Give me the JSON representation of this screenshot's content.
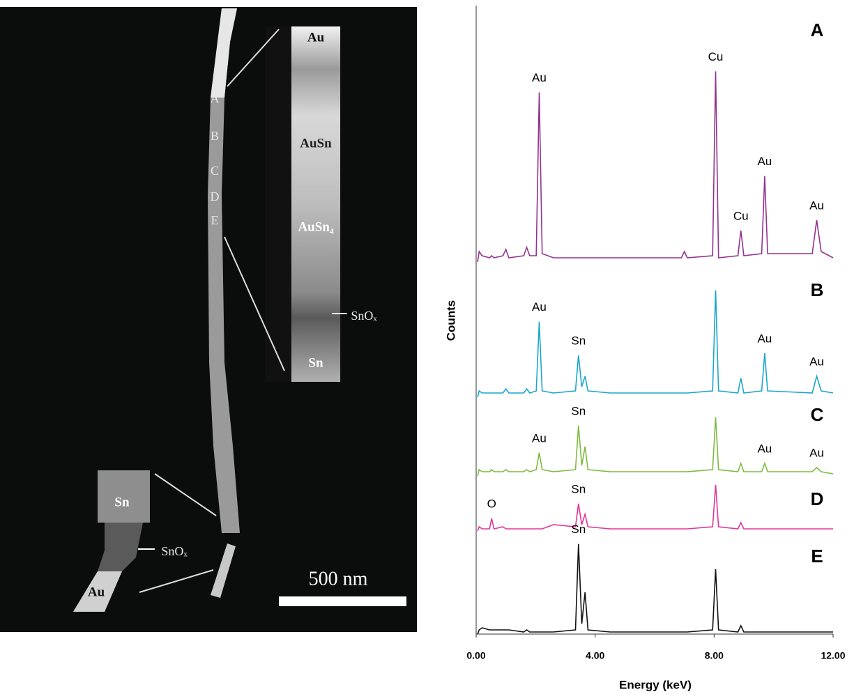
{
  "image": {
    "labels": [
      "A",
      "B",
      "C",
      "D",
      "E",
      "Au",
      "AuSn",
      "AuSn₄",
      "SnOₓ",
      "Sn",
      "Sn",
      "SnOₓ",
      "Au",
      "500 nm"
    ]
  },
  "chart_data": {
    "type": "line",
    "x_label": "Energy (keV)",
    "y_label": "Counts",
    "xlim": [
      0,
      12
    ],
    "xticks": [
      {
        "value": 0,
        "label": "0.00"
      },
      {
        "value": 4,
        "label": "4.00"
      },
      {
        "value": 8,
        "label": "8.00"
      },
      {
        "value": 12,
        "label": "12.00"
      }
    ],
    "ylim": [
      0,
      300
    ],
    "x": [
      0.05,
      0.1,
      0.2,
      0.45,
      0.52,
      0.6,
      0.9,
      1.0,
      1.1,
      1.6,
      1.7,
      1.8,
      2.02,
      2.12,
      2.22,
      2.6,
      3.34,
      3.44,
      3.55,
      3.66,
      3.76,
      4.5,
      6.9,
      7.0,
      7.1,
      7.95,
      8.05,
      8.15,
      8.8,
      8.9,
      9.0,
      9.6,
      9.7,
      9.8,
      11.3,
      11.45,
      11.6,
      12.0
    ],
    "series": [
      {
        "name": "A",
        "color": "#93338f",
        "values": [
          0,
          5,
          3,
          2,
          3,
          2,
          3,
          6,
          2,
          3,
          7,
          3,
          3,
          81,
          4,
          2,
          2,
          2,
          2,
          2,
          2,
          2,
          2,
          5,
          2,
          3,
          91,
          2,
          3,
          15,
          3,
          4,
          41,
          4,
          4,
          20,
          5,
          2
        ],
        "peaks": [
          {
            "label": "Au",
            "x": 2.12
          },
          {
            "label": "Cu",
            "x": 8.05
          },
          {
            "label": "Cu",
            "x": 8.9
          },
          {
            "label": "Au",
            "x": 9.7
          },
          {
            "label": "Au",
            "x": 11.45
          }
        ]
      },
      {
        "name": "B",
        "color": "#1aa6cf",
        "values": [
          0,
          3,
          2,
          2,
          2,
          2,
          2,
          4,
          2,
          2,
          4,
          2,
          3,
          36,
          3,
          2,
          3,
          20,
          5,
          10,
          3,
          2,
          2,
          2,
          2,
          3,
          51,
          3,
          2,
          9,
          2,
          3,
          21,
          3,
          2,
          10,
          3,
          2
        ],
        "peaks": [
          {
            "label": "Au",
            "x": 2.12
          },
          {
            "label": "Sn",
            "x": 3.44
          },
          {
            "label": "Au",
            "x": 9.7
          },
          {
            "label": "Au",
            "x": 11.45
          }
        ]
      },
      {
        "name": "C",
        "color": "#7dbb3f",
        "values": [
          0,
          3,
          2,
          2,
          3,
          2,
          2,
          3,
          2,
          2,
          3,
          2,
          3,
          11,
          3,
          2,
          3,
          24,
          5,
          14,
          3,
          2,
          2,
          2,
          2,
          3,
          28,
          3,
          2,
          6,
          2,
          2,
          6,
          2,
          2,
          4,
          2,
          1
        ],
        "peaks": [
          {
            "label": "Au",
            "x": 2.12
          },
          {
            "label": "Sn",
            "x": 3.44
          },
          {
            "label": "Au",
            "x": 9.7
          },
          {
            "label": "Au",
            "x": 11.45
          }
        ]
      },
      {
        "name": "D",
        "color": "#e0359a",
        "values": [
          0,
          2,
          1,
          1,
          6,
          1,
          2,
          1,
          1,
          1,
          1,
          1,
          1,
          1,
          1,
          3,
          2,
          13,
          3,
          8,
          2,
          1,
          1,
          1,
          1,
          2,
          22,
          2,
          1,
          4,
          1,
          1,
          1,
          1,
          1,
          1,
          1,
          1
        ],
        "peaks": [
          {
            "label": "O",
            "x": 0.52
          },
          {
            "label": "Sn",
            "x": 3.44
          }
        ]
      },
      {
        "name": "E",
        "color": "#111111",
        "values": [
          0,
          2,
          3,
          2,
          2,
          2,
          2,
          2,
          2,
          1,
          2,
          1,
          1,
          1,
          1,
          1,
          2,
          43,
          5,
          20,
          2,
          1,
          1,
          1,
          1,
          2,
          31,
          2,
          1,
          4,
          1,
          1,
          1,
          1,
          1,
          1,
          1,
          1
        ],
        "peaks": [
          {
            "label": "Sn",
            "x": 3.44
          }
        ]
      }
    ]
  }
}
